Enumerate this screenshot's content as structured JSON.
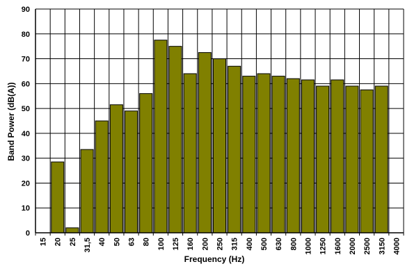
{
  "chart_data": {
    "type": "bar",
    "title": "",
    "xlabel": "Frequency (Hz)",
    "ylabel": "Band Power (dB(A))",
    "ylim": [
      0,
      90
    ],
    "yticks": [
      0,
      10,
      20,
      30,
      40,
      50,
      60,
      70,
      80,
      90
    ],
    "grid": true,
    "legend": "none",
    "categories": [
      "15",
      "20",
      "25",
      "31,5",
      "40",
      "50",
      "63",
      "80",
      "100",
      "125",
      "160",
      "200",
      "250",
      "315",
      "400",
      "500",
      "630",
      "800",
      "1000",
      "1250",
      "1600",
      "2000",
      "2500",
      "3150",
      "4000"
    ],
    "values": [
      null,
      28.5,
      2,
      33.5,
      45,
      51.5,
      49,
      56,
      77.5,
      75,
      64,
      72.5,
      70,
      67,
      63,
      64,
      63,
      62,
      61.5,
      59,
      61.5,
      59,
      57.5,
      59,
      null
    ],
    "colors": {
      "bar_fill": "#808000",
      "bar_stroke": "#000000",
      "grid": "#000000",
      "background": "#ffffff"
    }
  }
}
